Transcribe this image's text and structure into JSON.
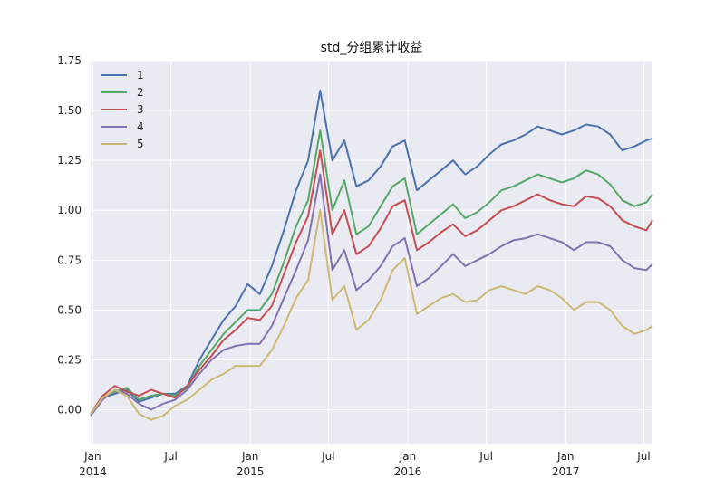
{
  "chart_data": {
    "type": "line",
    "title": "std_分组累计收益",
    "xlabel": "",
    "ylabel": "",
    "x_range": [
      "2013-12-27",
      "2017-07-21"
    ],
    "ylim": [
      -0.17,
      1.75
    ],
    "grid": true,
    "legend_position": "top-left",
    "x_ticks": [
      {
        "date": "2014-01-01",
        "label": "Jan",
        "year": "2014"
      },
      {
        "date": "2014-07-01",
        "label": "Jul",
        "year": ""
      },
      {
        "date": "2015-01-01",
        "label": "Jan",
        "year": "2015"
      },
      {
        "date": "2015-07-01",
        "label": "Jul",
        "year": ""
      },
      {
        "date": "2016-01-01",
        "label": "Jan",
        "year": "2016"
      },
      {
        "date": "2016-07-01",
        "label": "Jul",
        "year": ""
      },
      {
        "date": "2017-01-01",
        "label": "Jan",
        "year": "2017"
      },
      {
        "date": "2017-07-01",
        "label": "Jul",
        "year": ""
      }
    ],
    "y_ticks": [
      0.0,
      0.25,
      0.5,
      0.75,
      1.0,
      1.25,
      1.5,
      1.75
    ],
    "y_tick_labels": [
      "0.00",
      "0.25",
      "0.50",
      "0.75",
      "1.00",
      "1.25",
      "1.50",
      "1.75"
    ],
    "x": [
      "2013-12-27",
      "2014-01-24",
      "2014-02-21",
      "2014-03-21",
      "2014-04-18",
      "2014-05-16",
      "2014-06-13",
      "2014-07-11",
      "2014-08-08",
      "2014-09-05",
      "2014-10-03",
      "2014-10-31",
      "2014-11-28",
      "2014-12-26",
      "2015-01-23",
      "2015-02-20",
      "2015-03-20",
      "2015-04-17",
      "2015-05-15",
      "2015-06-12",
      "2015-07-10",
      "2015-08-07",
      "2015-09-04",
      "2015-10-02",
      "2015-10-30",
      "2015-11-27",
      "2015-12-25",
      "2016-01-22",
      "2016-02-19",
      "2016-03-18",
      "2016-04-15",
      "2016-05-13",
      "2016-06-10",
      "2016-07-08",
      "2016-08-05",
      "2016-09-02",
      "2016-09-30",
      "2016-10-28",
      "2016-11-25",
      "2016-12-23",
      "2017-01-20",
      "2017-02-17",
      "2017-03-17",
      "2017-04-14",
      "2017-05-12",
      "2017-06-09",
      "2017-07-07",
      "2017-07-21"
    ],
    "series": [
      {
        "name": "1",
        "color": "#4C72B0",
        "values": [
          -0.02,
          0.06,
          0.08,
          0.1,
          0.04,
          0.06,
          0.08,
          0.08,
          0.12,
          0.25,
          0.35,
          0.45,
          0.52,
          0.63,
          0.58,
          0.72,
          0.9,
          1.1,
          1.25,
          1.6,
          1.25,
          1.35,
          1.12,
          1.15,
          1.22,
          1.32,
          1.35,
          1.1,
          1.15,
          1.2,
          1.25,
          1.18,
          1.22,
          1.28,
          1.33,
          1.35,
          1.38,
          1.42,
          1.4,
          1.38,
          1.4,
          1.43,
          1.42,
          1.38,
          1.3,
          1.32,
          1.35,
          1.36
        ]
      },
      {
        "name": "2",
        "color": "#55A868",
        "values": [
          -0.02,
          0.06,
          0.09,
          0.11,
          0.05,
          0.07,
          0.08,
          0.07,
          0.11,
          0.22,
          0.3,
          0.38,
          0.44,
          0.5,
          0.5,
          0.58,
          0.74,
          0.92,
          1.05,
          1.4,
          1.0,
          1.15,
          0.88,
          0.92,
          1.02,
          1.12,
          1.16,
          0.88,
          0.93,
          0.98,
          1.03,
          0.96,
          0.99,
          1.04,
          1.1,
          1.12,
          1.15,
          1.18,
          1.16,
          1.14,
          1.16,
          1.2,
          1.18,
          1.13,
          1.05,
          1.02,
          1.04,
          1.08
        ]
      },
      {
        "name": "3",
        "color": "#C44E52",
        "values": [
          -0.02,
          0.07,
          0.12,
          0.09,
          0.07,
          0.1,
          0.08,
          0.06,
          0.12,
          0.2,
          0.27,
          0.35,
          0.4,
          0.46,
          0.45,
          0.52,
          0.68,
          0.84,
          0.97,
          1.3,
          0.88,
          1.0,
          0.78,
          0.82,
          0.91,
          1.02,
          1.05,
          0.8,
          0.84,
          0.89,
          0.93,
          0.87,
          0.9,
          0.95,
          1.0,
          1.02,
          1.05,
          1.08,
          1.05,
          1.03,
          1.02,
          1.07,
          1.06,
          1.02,
          0.95,
          0.92,
          0.9,
          0.95
        ]
      },
      {
        "name": "4",
        "color": "#8172B2",
        "values": [
          -0.03,
          0.05,
          0.1,
          0.08,
          0.03,
          0.0,
          0.03,
          0.05,
          0.1,
          0.18,
          0.25,
          0.3,
          0.32,
          0.33,
          0.33,
          0.42,
          0.56,
          0.7,
          0.85,
          1.18,
          0.7,
          0.8,
          0.6,
          0.65,
          0.72,
          0.82,
          0.86,
          0.62,
          0.66,
          0.72,
          0.78,
          0.72,
          0.75,
          0.78,
          0.82,
          0.85,
          0.86,
          0.88,
          0.86,
          0.84,
          0.8,
          0.84,
          0.84,
          0.82,
          0.75,
          0.71,
          0.7,
          0.73
        ]
      },
      {
        "name": "5",
        "color": "#CCB974",
        "values": [
          -0.02,
          0.06,
          0.1,
          0.07,
          -0.02,
          -0.05,
          -0.03,
          0.02,
          0.05,
          0.1,
          0.15,
          0.18,
          0.22,
          0.22,
          0.22,
          0.3,
          0.42,
          0.56,
          0.65,
          1.0,
          0.55,
          0.62,
          0.4,
          0.45,
          0.55,
          0.7,
          0.76,
          0.48,
          0.52,
          0.56,
          0.58,
          0.54,
          0.55,
          0.6,
          0.62,
          0.6,
          0.58,
          0.62,
          0.6,
          0.56,
          0.5,
          0.54,
          0.54,
          0.5,
          0.42,
          0.38,
          0.4,
          0.42
        ]
      }
    ]
  }
}
